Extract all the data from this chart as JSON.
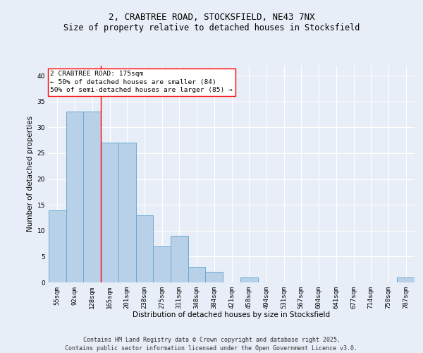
{
  "title_line1": "2, CRABTREE ROAD, STOCKSFIELD, NE43 7NX",
  "title_line2": "Size of property relative to detached houses in Stocksfield",
  "xlabel": "Distribution of detached houses by size in Stocksfield",
  "ylabel": "Number of detached properties",
  "categories": [
    "55sqm",
    "92sqm",
    "128sqm",
    "165sqm",
    "201sqm",
    "238sqm",
    "275sqm",
    "311sqm",
    "348sqm",
    "384sqm",
    "421sqm",
    "458sqm",
    "494sqm",
    "531sqm",
    "567sqm",
    "604sqm",
    "641sqm",
    "677sqm",
    "714sqm",
    "750sqm",
    "787sqm"
  ],
  "values": [
    14,
    33,
    33,
    27,
    27,
    13,
    7,
    9,
    3,
    2,
    0,
    1,
    0,
    0,
    0,
    0,
    0,
    0,
    0,
    0,
    1
  ],
  "bar_color": "#b8d0e8",
  "bar_edge_color": "#6aaad4",
  "red_line_index": 2.5,
  "annotation_text": "2 CRABTREE ROAD: 175sqm\n← 50% of detached houses are smaller (84)\n50% of semi-detached houses are larger (85) →",
  "annotation_box_color": "white",
  "annotation_box_edge_color": "red",
  "ylim": [
    0,
    42
  ],
  "yticks": [
    0,
    5,
    10,
    15,
    20,
    25,
    30,
    35,
    40
  ],
  "background_color": "#e8eef7",
  "plot_bg_color": "#e8eef7",
  "grid_color": "white",
  "footer_line1": "Contains HM Land Registry data © Crown copyright and database right 2025.",
  "footer_line2": "Contains public sector information licensed under the Open Government Licence v3.0.",
  "title_fontsize": 9,
  "title2_fontsize": 8.5,
  "axis_label_fontsize": 7.5,
  "tick_fontsize": 6.5,
  "annotation_fontsize": 6.8,
  "footer_fontsize": 6.0
}
